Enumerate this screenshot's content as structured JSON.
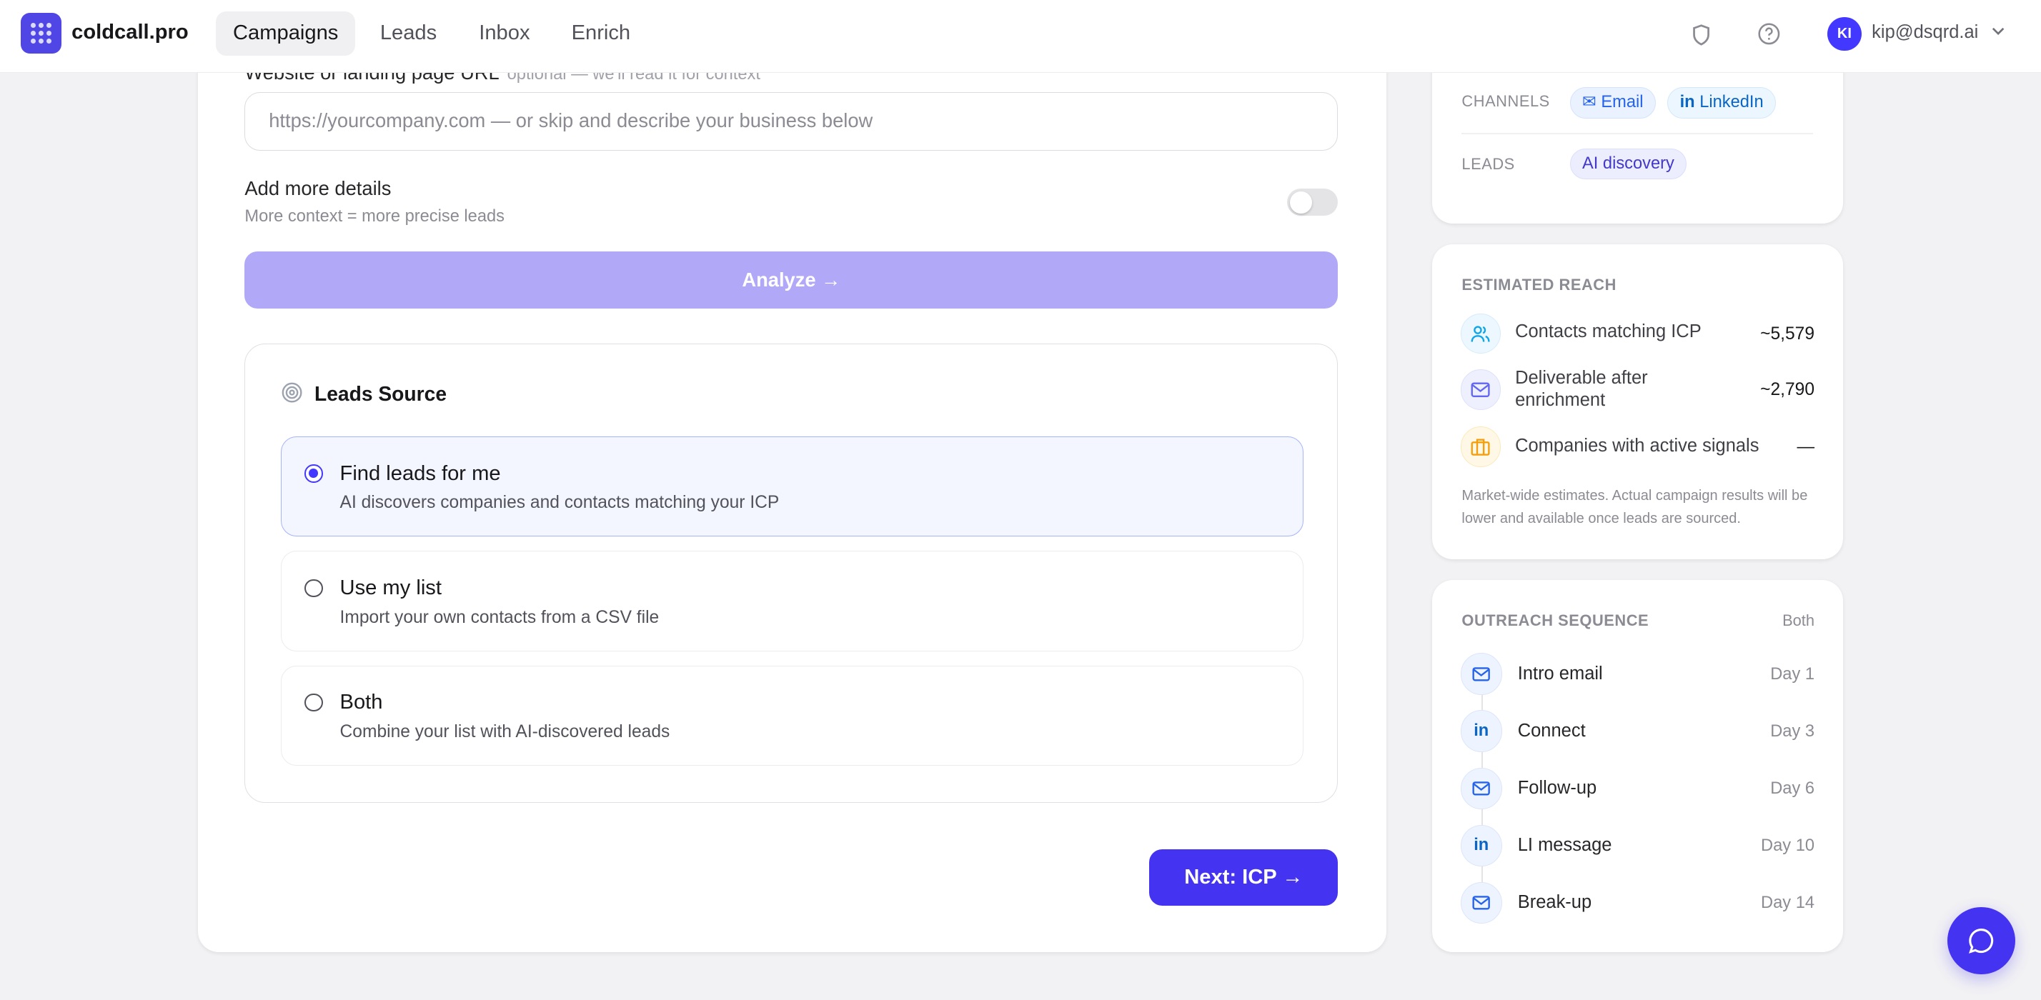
{
  "header": {
    "brand": "coldcall.pro",
    "nav": [
      {
        "label": "Campaigns",
        "active": true
      },
      {
        "label": "Leads"
      },
      {
        "label": "Inbox"
      },
      {
        "label": "Enrich"
      }
    ],
    "avatar_initials": "KI",
    "user_email": "kip@dsqrd.ai"
  },
  "form": {
    "url_label": "Website or landing page URL",
    "url_hint": "optional — we'll read it for context",
    "url_placeholder": "https://yourcompany.com — or skip and describe your business below",
    "url_value": "",
    "details_label": "Add more details",
    "details_sub": "More context = more precise leads",
    "details_enabled": false,
    "analyze_label": "Analyze →",
    "leads_source": {
      "title": "Leads Source",
      "options": [
        {
          "title": "Find leads for me",
          "desc": "AI discovers companies and contacts matching your ICP",
          "selected": true
        },
        {
          "title": "Use my list",
          "desc": "Import your own contacts from a CSV file",
          "selected": false
        },
        {
          "title": "Both",
          "desc": "Combine your list with AI-discovered leads",
          "selected": false
        }
      ]
    },
    "next_label": "Next: ICP →"
  },
  "summary": {
    "channels_label": "CHANNELS",
    "channels": [
      "Email",
      "LinkedIn"
    ],
    "leads_label": "LEADS",
    "leads": "AI discovery"
  },
  "reach": {
    "title": "ESTIMATED REACH",
    "rows": [
      {
        "label": "Contacts matching ICP",
        "value": "~5,579",
        "icon": "users-icon"
      },
      {
        "label": "Deliverable after enrichment",
        "value": "~2,790",
        "icon": "mail-icon"
      },
      {
        "label": "Companies with active signals",
        "value": "—",
        "icon": "briefcase-icon"
      }
    ],
    "note": "Market-wide estimates. Actual campaign results will be lower and available once leads are sourced."
  },
  "sequence": {
    "title": "OUTREACH SEQUENCE",
    "mode": "Both",
    "steps": [
      {
        "label": "Intro email",
        "day": "Day 1",
        "channel": "email"
      },
      {
        "label": "Connect",
        "day": "Day 3",
        "channel": "linkedin"
      },
      {
        "label": "Follow-up",
        "day": "Day 6",
        "channel": "email"
      },
      {
        "label": "LI message",
        "day": "Day 10",
        "channel": "linkedin"
      },
      {
        "label": "Break-up",
        "day": "Day 14",
        "channel": "email"
      }
    ]
  },
  "colors": {
    "accent": "#4433f0",
    "analyze_disabled": "#b1a9f8",
    "background": "#f2f2f4"
  }
}
